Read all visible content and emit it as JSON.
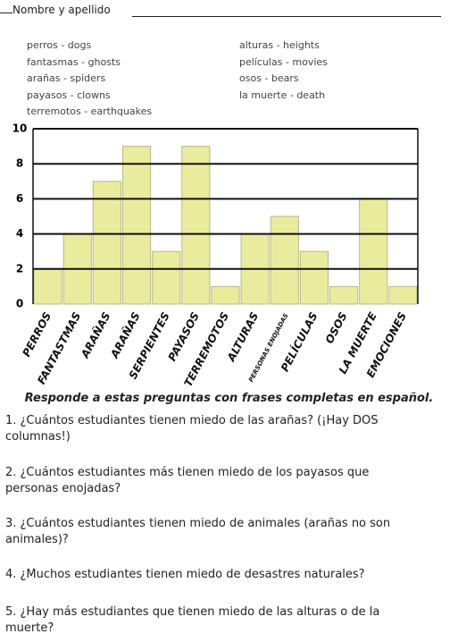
{
  "header": {
    "name_label": "Nombre y apellido"
  },
  "vocabulary": {
    "left": [
      "perros - dogs",
      "fantasmas - ghosts",
      "arañas - spiders",
      "payasos - clowns",
      "terremotos - earthquakes"
    ],
    "right": [
      "alturas - heights",
      "películas - movies",
      "osos - bears",
      "la muerte - death"
    ]
  },
  "chart_data": {
    "type": "bar",
    "categories": [
      "PERROS",
      "FANTASTMAS",
      "ARAÑAS",
      "ARAÑAS",
      "SERPIENTES",
      "PAYASOS",
      "TERREMOTOS",
      "ALTURAS",
      "PERSONAS ENOJADAS",
      "PELÍCULAS",
      "OSOS",
      "LA MUERTE",
      "EMOCIONES"
    ],
    "values": [
      2,
      4,
      7,
      9,
      3,
      9,
      1,
      4,
      5,
      3,
      1,
      6,
      1
    ],
    "color": "#e9ec9c",
    "ylim": [
      0,
      10
    ],
    "yticks": [
      0,
      2,
      4,
      6,
      8,
      10
    ],
    "grid": true
  },
  "instructions": "Responde a estas preguntas con frases completas en español.",
  "questions": [
    "1. ¿Cuántos estudiantes tienen miedo de las arañas? (¡Hay DOS columnas!)",
    "2. ¿Cuántos estudiantes más tienen miedo de los payasos que personas enojadas?",
    "3. ¿Cuántos estudiantes tienen miedo de animales (arañas no son animales)?",
    "4. ¿Muchos estudiantes tienen miedo de desastres naturales?",
    "5. ¿Hay más estudiantes que tienen miedo de las alturas o de la muerte?"
  ]
}
